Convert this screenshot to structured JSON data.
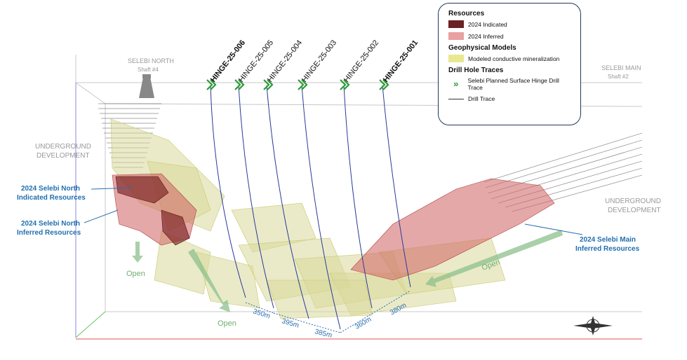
{
  "legend": {
    "resources_heading": "Resources",
    "indicated_label": "2024 Indicated",
    "inferred_label": "2024 Inferred",
    "geophysical_heading": "Geophysical Models",
    "conductive_label": "Modeled conductive mineralization",
    "drill_heading": "Drill Hole Traces",
    "planned_label": "Selebi Planned Surface Hinge Drill Trace",
    "drill_trace_label": "Drill Trace",
    "colors": {
      "indicated": "#6b2222",
      "inferred": "#e8a0a0",
      "conductive": "#e8e890",
      "planned": "#2e9b3a"
    }
  },
  "labels": {
    "selebi_north": "SELEBI NORTH",
    "shaft4": "Shaft #4",
    "selebi_main": "SELEBI MAIN",
    "shaft2": "Shaft #2",
    "ug_left_1": "UNDERGROUND",
    "ug_left_2": "DEVELOPMENT",
    "ug_right_1": "UNDERGROUND",
    "ug_right_2": "DEVELOPMENT",
    "north_ind_1": "2024 Selebi North",
    "north_ind_2": "Indicated Resources",
    "north_inf_1": "2024 Selebi North",
    "north_inf_2": "Inferred Resources",
    "main_inf_1": "2024 Selebi Main",
    "main_inf_2": "Inferred Resources",
    "open_1": "Open",
    "open_2": "Open",
    "open_3": "Open"
  },
  "holes": [
    "HINGE-25-006",
    "HINGE-25-005",
    "HINGE-25-004",
    "HINGE-25-003",
    "HINGE-25-002",
    "HINGE-25-001"
  ],
  "spacings": [
    "350m",
    "395m",
    "385m",
    "360m",
    "380m"
  ]
}
